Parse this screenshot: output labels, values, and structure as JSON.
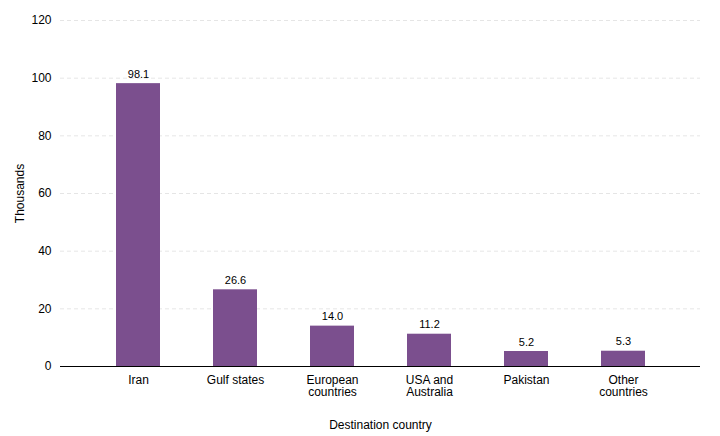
{
  "chart_data": {
    "type": "bar",
    "categories": [
      "Iran",
      "Gulf states",
      "European\ncountries",
      "USA and\nAustralia",
      "Pakistan",
      "Other\ncountries"
    ],
    "values": [
      98.1,
      26.6,
      14.0,
      11.2,
      5.2,
      5.3
    ],
    "value_labels": [
      "98.1",
      "26.6",
      "14.0",
      "11.2",
      "5.2",
      "5.3"
    ],
    "data_labels": true,
    "color": "#7B4F8E",
    "xlabel": "Destination country",
    "ylabel": "Thousands",
    "ylim": [
      0,
      120
    ],
    "yticks": [
      0,
      20,
      40,
      60,
      80,
      100,
      120
    ],
    "grid": true
  }
}
